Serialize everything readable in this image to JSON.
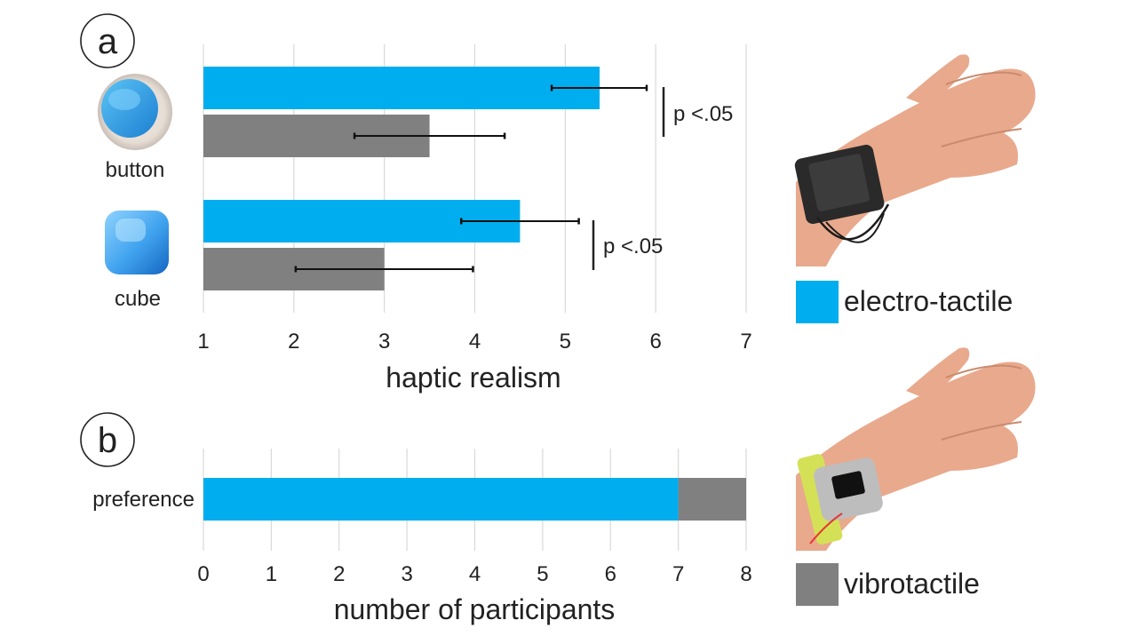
{
  "colors": {
    "electro": "#00aeef",
    "vibro": "#808080",
    "grid": "#d9d9d9",
    "text": "#222222"
  },
  "panel_a": {
    "label": "a",
    "categories": [
      {
        "name": "button",
        "icon": "blue-button-icon"
      },
      {
        "name": "cube",
        "icon": "blue-cube-icon"
      }
    ],
    "significance": [
      "p <.05",
      "p <.05"
    ]
  },
  "panel_b": {
    "label": "b",
    "category": "preference"
  },
  "legend": {
    "electro_label": "electro-tactile",
    "vibro_label": "vibrotactile",
    "electro_image": "hand-with-electro-tactile-wristband",
    "vibro_image": "hand-with-vibrotactile-device"
  },
  "chart_data": [
    {
      "type": "bar",
      "orientation": "horizontal",
      "categories": [
        "button",
        "cube"
      ],
      "series": [
        {
          "name": "electro-tactile",
          "values": [
            5.38,
            4.5
          ],
          "error": [
            [
              4.85,
              5.9
            ],
            [
              3.85,
              5.15
            ]
          ]
        },
        {
          "name": "vibrotactile",
          "values": [
            3.5,
            3.0
          ],
          "error": [
            [
              2.67,
              4.33
            ],
            [
              2.02,
              3.98
            ]
          ]
        }
      ],
      "xlabel": "haptic realism",
      "xlim": [
        1,
        7
      ],
      "xticks": [
        1,
        2,
        3,
        4,
        5,
        6,
        7
      ],
      "annotations": [
        "p <.05",
        "p <.05"
      ],
      "grid": "vertical",
      "legend": "right"
    },
    {
      "type": "bar",
      "orientation": "horizontal",
      "stacked": true,
      "categories": [
        "preference"
      ],
      "series": [
        {
          "name": "electro-tactile",
          "values": [
            7
          ]
        },
        {
          "name": "vibrotactile",
          "values": [
            1
          ]
        }
      ],
      "xlabel": "number of participants",
      "xlim": [
        0,
        8
      ],
      "xticks": [
        0,
        1,
        2,
        3,
        4,
        5,
        6,
        7,
        8
      ],
      "grid": "vertical"
    }
  ]
}
